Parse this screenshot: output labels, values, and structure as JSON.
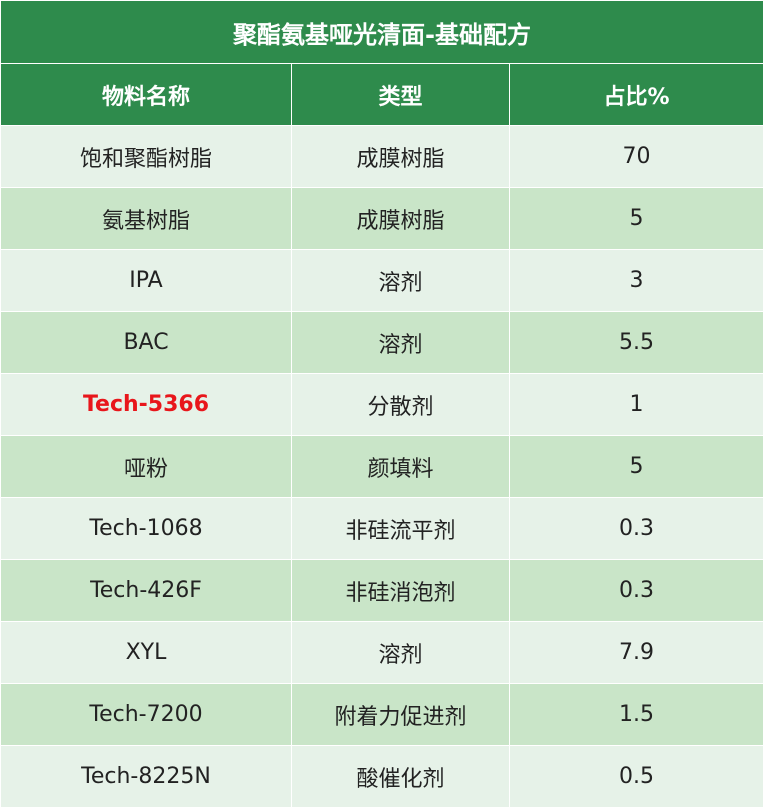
{
  "title": "聚酯氨基哑光清面-基础配方",
  "columns": [
    "物料名称",
    "类型",
    "占比%"
  ],
  "rows": [
    {
      "name": "饱和聚酯树脂",
      "type": "成膜树脂",
      "ratio": "70"
    },
    {
      "name": "氨基树脂",
      "type": "成膜树脂",
      "ratio": "5"
    },
    {
      "name": "IPA",
      "type": "溶剂",
      "ratio": "3"
    },
    {
      "name": "BAC",
      "type": "溶剂",
      "ratio": "5.5"
    },
    {
      "name": "Tech-5366",
      "type": "分散剂",
      "ratio": "1",
      "highlight": true
    },
    {
      "name": "哑粉",
      "type": "颜填料",
      "ratio": "5"
    },
    {
      "name": "Tech-1068",
      "type": "非硅流平剂",
      "ratio": "0.3"
    },
    {
      "name": "Tech-426F",
      "type": "非硅消泡剂",
      "ratio": "0.3"
    },
    {
      "name": "XYL",
      "type": "溶剂",
      "ratio": "7.9"
    },
    {
      "name": "Tech-7200",
      "type": "附着力促进剂",
      "ratio": "1.5"
    },
    {
      "name": "Tech-8225N",
      "type": "酸催化剂",
      "ratio": "0.5"
    }
  ],
  "colors": {
    "header_bg": "#2e8b4c",
    "row_light": "#e6f2e8",
    "row_dark": "#c9e5c8",
    "highlight_text": "#e8161b"
  }
}
